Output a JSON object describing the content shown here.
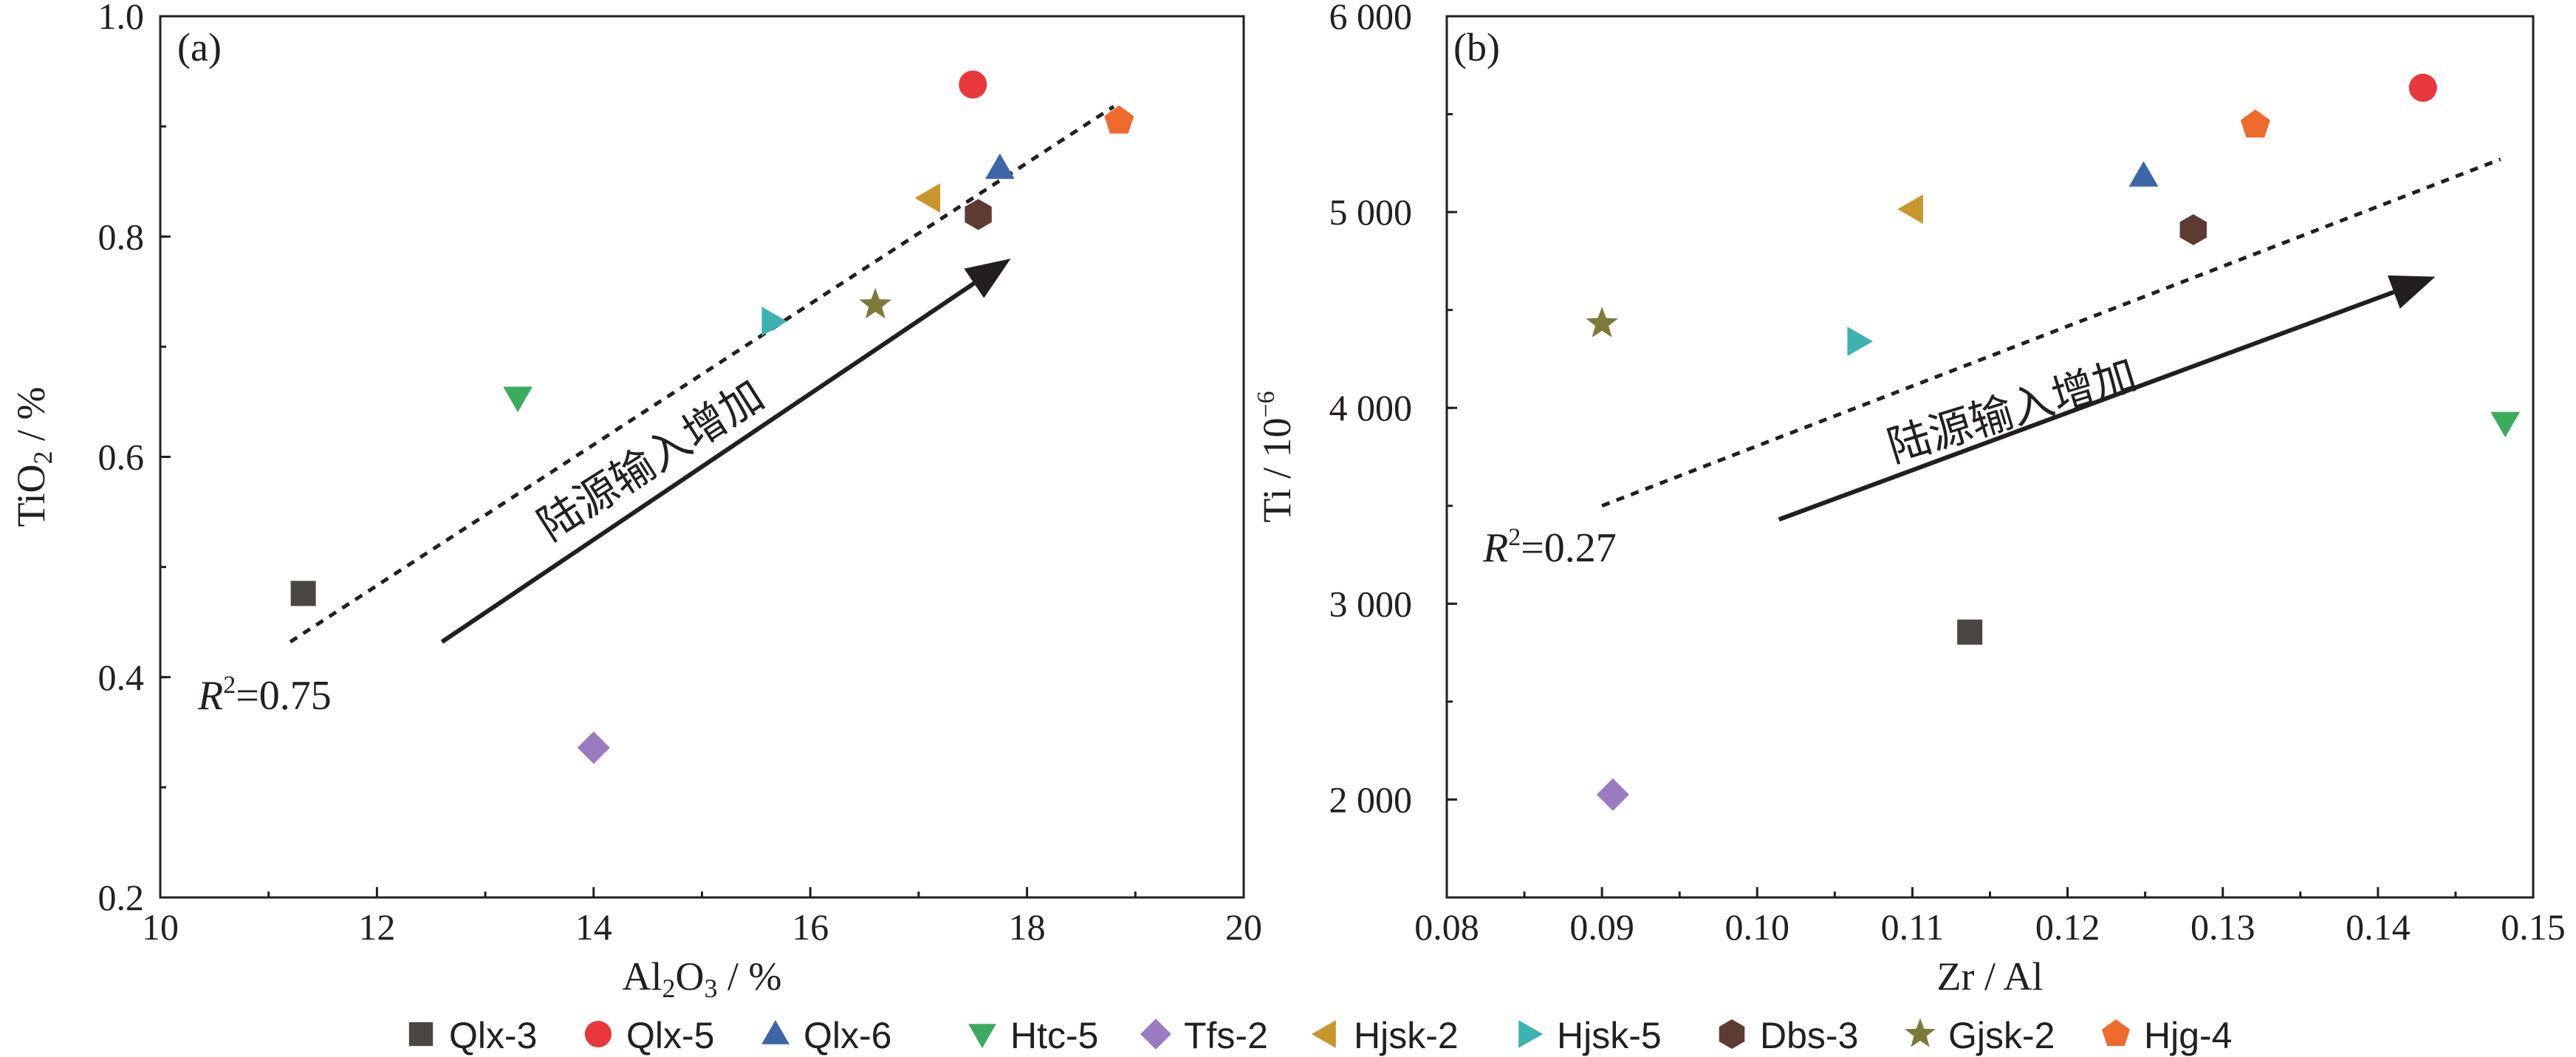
{
  "chart_data": [
    {
      "type": "scatter",
      "panel_label": "(a)",
      "xlabel": "Al2O3/%",
      "ylabel": "TiO2/%",
      "xlim": [
        10,
        20
      ],
      "ylim": [
        0.2,
        1.0
      ],
      "xticks": [
        "10",
        "12",
        "14",
        "16",
        "18",
        "20"
      ],
      "yticks": [
        "0.2",
        "0.4",
        "0.6",
        "0.8",
        "1.0"
      ],
      "series": [
        {
          "name": "Qlx-3",
          "x": 11.32,
          "y": 0.476
        },
        {
          "name": "Qlx-5",
          "x": 17.5,
          "y": 0.938
        },
        {
          "name": "Qlx-6",
          "x": 17.75,
          "y": 0.862
        },
        {
          "name": "Htc-5",
          "x": 13.3,
          "y": 0.654
        },
        {
          "name": "Tfs-2",
          "x": 14.0,
          "y": 0.336
        },
        {
          "name": "Hjsk-2",
          "x": 17.1,
          "y": 0.835
        },
        {
          "name": "Hjsk-5",
          "x": 15.65,
          "y": 0.723
        },
        {
          "name": "Dbs-3",
          "x": 17.55,
          "y": 0.82
        },
        {
          "name": "Gjsk-2",
          "x": 16.6,
          "y": 0.738
        },
        {
          "name": "Hjg-4",
          "x": 18.85,
          "y": 0.905
        }
      ],
      "trendline": {
        "x": [
          11.2,
          18.8
        ],
        "y": [
          0.432,
          0.918
        ]
      },
      "arrow": {
        "from": [
          12.6,
          0.432
        ],
        "to": [
          17.85,
          0.78
        ]
      },
      "r2_label": "R²=0.75",
      "annotation": "陆源输入增加"
    },
    {
      "type": "scatter",
      "panel_label": "(b)",
      "xlabel": "Zr/Al",
      "ylabel": "Ti/10⁻⁶",
      "xlim": [
        0.08,
        0.15
      ],
      "ylim": [
        1500,
        6000
      ],
      "xticks": [
        "0.08",
        "0.09",
        "0.10",
        "0.11",
        "0.12",
        "0.13",
        "0.14",
        "0.15"
      ],
      "yticks": [
        "2 000",
        "3 000",
        "4 000",
        "5 000",
        "6 000"
      ],
      "series": [
        {
          "name": "Qlx-3",
          "x": 0.1137,
          "y": 2855
        },
        {
          "name": "Qlx-5",
          "x": 0.1429,
          "y": 5635
        },
        {
          "name": "Qlx-6",
          "x": 0.1249,
          "y": 5185
        },
        {
          "name": "Htc-5",
          "x": 0.1482,
          "y": 3925
        },
        {
          "name": "Tfs-2",
          "x": 0.0907,
          "y": 2025
        },
        {
          "name": "Hjsk-2",
          "x": 0.11,
          "y": 5015
        },
        {
          "name": "Hjsk-5",
          "x": 0.1065,
          "y": 4340
        },
        {
          "name": "Dbs-3",
          "x": 0.1281,
          "y": 4910
        },
        {
          "name": "Gjsk-2",
          "x": 0.09,
          "y": 4430
        },
        {
          "name": "Hjg-4",
          "x": 0.1321,
          "y": 5445
        }
      ],
      "trendline": {
        "x": [
          0.09,
          0.1479
        ],
        "y": [
          3500,
          5270
        ]
      },
      "arrow": {
        "from": [
          0.1014,
          3430
        ],
        "to": [
          0.1437,
          4670
        ]
      },
      "r2_label": "R²=0.27",
      "annotation": "陆源输入增加"
    }
  ],
  "legend": [
    {
      "label": "Qlx-3",
      "shape": "square",
      "color": "#4a4641"
    },
    {
      "label": "Qlx-5",
      "shape": "circle",
      "color": "#e8383c"
    },
    {
      "label": "Qlx-6",
      "shape": "triangle-up",
      "color": "#3d66a8"
    },
    {
      "label": "Htc-5",
      "shape": "triangle-down",
      "color": "#3bab5d"
    },
    {
      "label": "Tfs-2",
      "shape": "diamond",
      "color": "#9a7bbf"
    },
    {
      "label": "Hjsk-2",
      "shape": "triangle-left",
      "color": "#c9962c"
    },
    {
      "label": "Hjsk-5",
      "shape": "triangle-right",
      "color": "#3cb3b0"
    },
    {
      "label": "Dbs-3",
      "shape": "hexagon",
      "color": "#5e3b32"
    },
    {
      "label": "Gjsk-2",
      "shape": "star",
      "color": "#7d7a39"
    },
    {
      "label": "Hjg-4",
      "shape": "pentagon",
      "color": "#ef6a2c"
    }
  ]
}
